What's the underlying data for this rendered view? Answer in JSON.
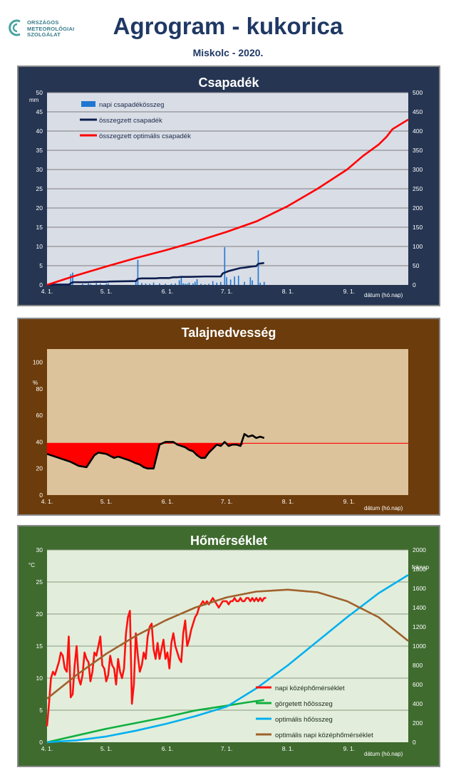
{
  "header": {
    "logo_lines": [
      "ORSZÁGOS",
      "METEOROLÓGIAI",
      "SZOLGÁLAT"
    ],
    "title": "Agrogram - kukorica",
    "subtitle": "Miskolc  - 2020."
  },
  "colors": {
    "csapadek_bg": "#253552",
    "csapadek_plot": "#d9dde6",
    "talaj_bg": "#6c3c0c",
    "talaj_plot": "#dcc39b",
    "homerseklet_bg": "#3f6b2f",
    "homerseklet_plot": "#e2eedb"
  },
  "chart_data": [
    {
      "type": "line",
      "title": "Csapadék",
      "xlabel": "dátum (hó.nap)",
      "ylabel_left": "mm",
      "x_ticks": [
        "4. 1.",
        "5. 1.",
        "6. 1.",
        "7. 1.",
        "8. 1.",
        "9. 1."
      ],
      "xlim": [
        0,
        183
      ],
      "ylim_left": [
        0,
        50
      ],
      "yticks_left": [
        0,
        5,
        10,
        15,
        20,
        25,
        30,
        35,
        40,
        45,
        50
      ],
      "ylim_right": [
        0,
        500
      ],
      "yticks_right": [
        0,
        50,
        100,
        150,
        200,
        250,
        300,
        350,
        400,
        450,
        500
      ],
      "legend_placement": "top-left",
      "grid": true,
      "series": [
        {
          "name": "napi csapadékösszeg",
          "kind": "bar",
          "axis": "left",
          "color": "#1f77d0",
          "x": [
            2,
            3,
            4,
            12,
            13,
            18,
            21,
            22,
            25,
            27,
            30,
            31,
            45,
            46,
            48,
            50,
            52,
            54,
            57,
            60,
            63,
            65,
            67,
            68,
            69,
            70,
            71,
            72,
            74,
            75,
            76,
            78,
            80,
            82,
            84,
            86,
            88,
            90,
            91,
            93,
            95,
            97,
            100,
            103,
            104,
            107,
            108,
            110
          ],
          "values": [
            0.2,
            0.3,
            0.2,
            2.8,
            3.2,
            0.3,
            0.4,
            0.2,
            0.5,
            0.3,
            0.3,
            0.4,
            1.2,
            6.5,
            0.5,
            0.4,
            0.3,
            0.6,
            0.4,
            0.3,
            0.3,
            0.4,
            1.2,
            2.1,
            0.4,
            0.3,
            0.3,
            0.6,
            0.4,
            0.8,
            1.5,
            0.3,
            0.2,
            0.3,
            1.0,
            0.6,
            0.8,
            9.8,
            2.0,
            1.4,
            2.2,
            2.4,
            0.8,
            2.0,
            1.2,
            9.0,
            0.6,
            0.8
          ]
        },
        {
          "name": "összegzett csapadék",
          "kind": "line",
          "axis": "right",
          "color": "#0d1f4f",
          "x": [
            0,
            2,
            4,
            11,
            12,
            13,
            20,
            25,
            30,
            32,
            45,
            46,
            48,
            55,
            57,
            62,
            64,
            66,
            68,
            72,
            80,
            88,
            89,
            90,
            91,
            92,
            95,
            98,
            100,
            104,
            106,
            107,
            110
          ],
          "values": [
            0,
            0,
            1,
            1,
            4,
            7,
            7,
            8,
            8,
            9,
            10,
            16,
            17,
            17,
            18,
            18,
            20,
            20,
            21,
            21,
            22,
            22,
            30,
            32,
            34,
            36,
            40,
            44,
            45,
            48,
            49,
            55,
            57
          ]
        },
        {
          "name": "összegzett optimális csapadék",
          "kind": "line",
          "axis": "right",
          "color": "#ff0000",
          "x": [
            0,
            15,
            30,
            45,
            60,
            75,
            91,
            106,
            122,
            137,
            152,
            160,
            168,
            172,
            175,
            183
          ],
          "values": [
            0,
            25,
            48,
            70,
            90,
            112,
            138,
            165,
            205,
            250,
            300,
            335,
            365,
            385,
            405,
            430
          ]
        }
      ]
    },
    {
      "type": "area",
      "title": "Talajnedvesség",
      "xlabel": "dátum (hó.nap)",
      "ylabel": "%",
      "x_ticks": [
        "4. 1.",
        "5. 1.",
        "6. 1.",
        "7. 1.",
        "8. 1.",
        "9. 1."
      ],
      "xlim": [
        0,
        183
      ],
      "ylim": [
        0,
        110
      ],
      "yticks": [
        0,
        20,
        40,
        60,
        80,
        100
      ],
      "reference_level": 39,
      "grid": false,
      "series": [
        {
          "name": "talajnedvesség",
          "color": "#000000",
          "x": [
            0,
            4,
            8,
            12,
            16,
            20,
            24,
            26,
            30,
            34,
            36,
            40,
            42,
            45,
            47,
            49,
            51,
            54,
            57,
            60,
            64,
            66,
            68,
            70,
            72,
            74,
            76,
            78,
            80,
            82,
            84,
            86,
            88,
            90,
            92,
            94,
            96,
            98,
            100,
            102,
            104,
            106,
            108,
            110
          ],
          "values": [
            31,
            29,
            27,
            25,
            22,
            21,
            30,
            32,
            31,
            28,
            29,
            27,
            26,
            24,
            23,
            21,
            20,
            20,
            38,
            40,
            40,
            38,
            37,
            36,
            34,
            33,
            30,
            28,
            28,
            32,
            35,
            38,
            37,
            40,
            37,
            38,
            38,
            37,
            46,
            44,
            45,
            43,
            44,
            43
          ]
        }
      ]
    },
    {
      "type": "line",
      "title": "Hőmérséklet",
      "xlabel": "dátum (hó.nap)",
      "ylabel_left": "°C",
      "ylabel_right": "foknap",
      "x_ticks": [
        "4. 1.",
        "5. 1.",
        "6. 1.",
        "7. 1.",
        "8. 1.",
        "9. 1."
      ],
      "xlim": [
        0,
        183
      ],
      "ylim_left": [
        0,
        30
      ],
      "yticks_left": [
        0,
        5,
        10,
        15,
        20,
        25,
        30
      ],
      "ylim_right": [
        0,
        2000
      ],
      "yticks_right": [
        0,
        200,
        400,
        600,
        800,
        1000,
        1200,
        1400,
        1600,
        1800,
        2000
      ],
      "legend_placement": "bottom-right",
      "grid": true,
      "series": [
        {
          "name": "napi középhőmérséklet",
          "axis": "left",
          "color": "#ff1010",
          "x": [
            0,
            1,
            2,
            3,
            4,
            5,
            6,
            7,
            8,
            9,
            10,
            11,
            12,
            13,
            14,
            15,
            16,
            17,
            18,
            19,
            20,
            21,
            22,
            23,
            24,
            25,
            26,
            27,
            28,
            29,
            30,
            31,
            32,
            33,
            34,
            35,
            36,
            37,
            38,
            39,
            40,
            41,
            42,
            43,
            44,
            45,
            46,
            47,
            48,
            49,
            50,
            51,
            52,
            53,
            54,
            55,
            56,
            57,
            58,
            59,
            60,
            61,
            62,
            63,
            64,
            65,
            66,
            67,
            68,
            69,
            70,
            71,
            72,
            73,
            74,
            75,
            76,
            77,
            78,
            79,
            80,
            81,
            82,
            83,
            84,
            85,
            86,
            87,
            88,
            89,
            90,
            91,
            92,
            93,
            94,
            95,
            96,
            97,
            98,
            99,
            100,
            101,
            102,
            103,
            104,
            105,
            106,
            107,
            108,
            109,
            110,
            111
          ],
          "values": [
            2.5,
            6,
            10,
            11,
            10.5,
            11.5,
            12.5,
            14,
            13.5,
            11.5,
            11,
            16.5,
            7,
            7.5,
            12,
            15,
            10,
            9,
            10.5,
            14,
            13,
            12.5,
            9.5,
            11,
            14,
            13.5,
            15,
            16.5,
            12,
            11.5,
            9.5,
            10.5,
            13.5,
            12,
            11.5,
            9,
            13,
            11,
            10,
            11.5,
            17,
            19.5,
            20.5,
            6,
            9,
            17,
            13.5,
            11,
            12,
            14,
            13,
            16.5,
            18,
            18.5,
            14.5,
            13,
            15.5,
            13,
            14.5,
            16,
            13,
            14,
            11.5,
            15.5,
            17,
            15,
            14,
            13,
            12.5,
            17,
            19,
            15,
            16,
            17.5,
            18.5,
            19.5,
            20,
            21,
            21.5,
            22,
            21.5,
            22,
            21.5,
            22,
            22.5,
            22,
            21.5,
            21,
            21.5,
            22,
            22,
            22,
            21.5,
            22,
            22,
            22.5,
            22,
            22,
            22.5,
            22,
            22,
            22.5,
            22.5,
            22,
            22.5,
            22,
            22.5,
            22,
            22.5,
            22,
            22.5,
            22.5
          ]
        },
        {
          "name": "görgetett hőösszeg",
          "axis": "right",
          "color": "#10b040",
          "x": [
            0,
            15,
            30,
            45,
            60,
            75,
            91,
            100,
            110
          ],
          "values": [
            0,
            70,
            140,
            200,
            260,
            330,
            380,
            410,
            440
          ]
        },
        {
          "name": "optimális hőösszeg",
          "axis": "right",
          "color": "#00b0f0",
          "x": [
            0,
            15,
            30,
            45,
            60,
            75,
            91,
            106,
            122,
            137,
            152,
            168,
            183
          ],
          "values": [
            0,
            20,
            60,
            120,
            190,
            270,
            370,
            560,
            800,
            1050,
            1300,
            1550,
            1740
          ]
        },
        {
          "name": "optimális napi középhőmérséklet",
          "axis": "left",
          "color": "#a0612c",
          "x": [
            0,
            15,
            30,
            45,
            60,
            75,
            91,
            106,
            122,
            137,
            152,
            168,
            183
          ],
          "values": [
            6.8,
            10.5,
            13.8,
            16.6,
            19.0,
            21.0,
            22.6,
            23.5,
            23.8,
            23.4,
            22.0,
            19.5,
            15.8
          ]
        }
      ]
    }
  ]
}
